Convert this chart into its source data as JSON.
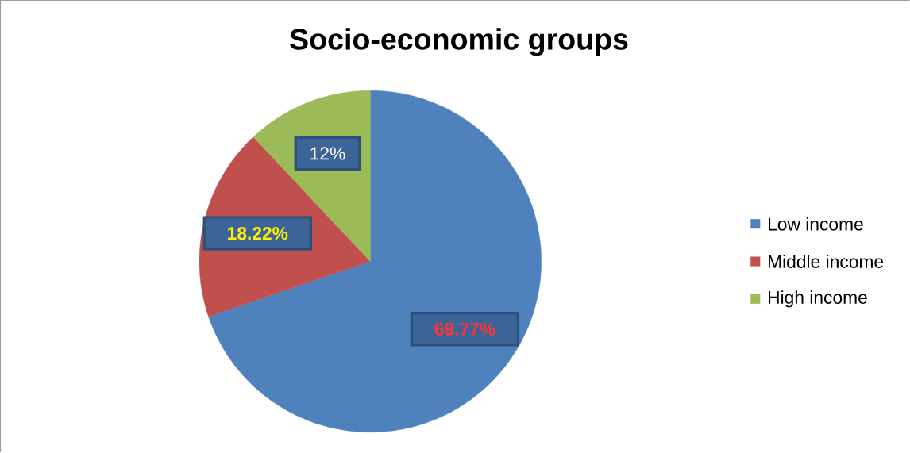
{
  "chart_data": {
    "type": "pie",
    "title": "Socio-economic groups",
    "categories": [
      "Low income",
      "Middle income",
      "High income"
    ],
    "values": [
      69.77,
      18.22,
      12
    ],
    "colors": [
      "#4f81bd",
      "#c0504d",
      "#9bbb59"
    ],
    "value_labels": [
      "69.77%",
      "18.22%",
      "12%"
    ],
    "legend": "right"
  }
}
